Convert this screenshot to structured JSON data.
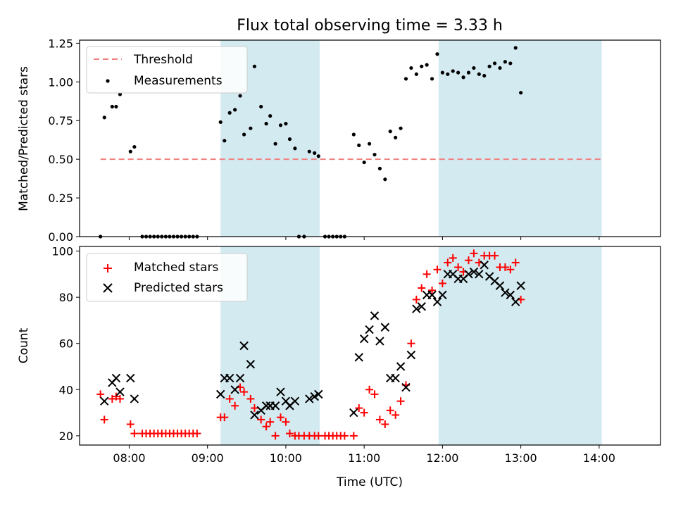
{
  "chart_data": [
    {
      "type": "scatter",
      "title": "Flux total observing time = 3.33 h",
      "ylabel": "Matched/Predicted stars",
      "xlabel": "",
      "xlim": [
        "07:22",
        "14:47"
      ],
      "ylim": [
        0,
        1.27
      ],
      "x_ticks": [
        "08:00",
        "09:00",
        "10:00",
        "11:00",
        "12:00",
        "13:00",
        "14:00"
      ],
      "y_ticks": [
        "0.00",
        "0.25",
        "0.50",
        "0.75",
        "1.00",
        "1.25"
      ],
      "legend_position": "top-left",
      "shaded_intervals": [
        [
          "09:10",
          "10:26"
        ],
        [
          "11:57",
          "14:02"
        ]
      ],
      "shade_color": "#d4eaf1",
      "threshold": {
        "name": "Threshold",
        "value": 0.5,
        "x_start": "07:38",
        "x_end": "14:02",
        "color": "#f08080"
      },
      "series": [
        {
          "name": "Measurements",
          "color": "#000000",
          "points": [
            [
              "07:38",
              0.0
            ],
            [
              "07:41",
              0.77
            ],
            [
              "07:47",
              0.84
            ],
            [
              "07:50",
              0.84
            ],
            [
              "07:53",
              0.92
            ],
            [
              "08:01",
              0.55
            ],
            [
              "08:04",
              0.58
            ],
            [
              "08:10",
              0.0
            ],
            [
              "08:13",
              0.0
            ],
            [
              "08:16",
              0.0
            ],
            [
              "08:19",
              0.0
            ],
            [
              "08:22",
              0.0
            ],
            [
              "08:25",
              0.0
            ],
            [
              "08:28",
              0.0
            ],
            [
              "08:31",
              0.0
            ],
            [
              "08:34",
              0.0
            ],
            [
              "08:37",
              0.0
            ],
            [
              "08:40",
              0.0
            ],
            [
              "08:43",
              0.0
            ],
            [
              "08:46",
              0.0
            ],
            [
              "08:49",
              0.0
            ],
            [
              "08:52",
              0.0
            ],
            [
              "09:10",
              0.74
            ],
            [
              "09:13",
              0.62
            ],
            [
              "09:17",
              0.8
            ],
            [
              "09:21",
              0.82
            ],
            [
              "09:25",
              0.91
            ],
            [
              "09:28",
              0.66
            ],
            [
              "09:33",
              0.7
            ],
            [
              "09:36",
              1.1
            ],
            [
              "09:41",
              0.84
            ],
            [
              "09:45",
              0.73
            ],
            [
              "09:48",
              0.78
            ],
            [
              "09:52",
              0.6
            ],
            [
              "09:56",
              0.72
            ],
            [
              "10:00",
              0.73
            ],
            [
              "10:03",
              0.63
            ],
            [
              "10:07",
              0.57
            ],
            [
              "10:10",
              0.0
            ],
            [
              "10:14",
              0.0
            ],
            [
              "10:18",
              0.55
            ],
            [
              "10:22",
              0.54
            ],
            [
              "10:25",
              0.52
            ],
            [
              "10:30",
              0.0
            ],
            [
              "10:33",
              0.0
            ],
            [
              "10:36",
              0.0
            ],
            [
              "10:39",
              0.0
            ],
            [
              "10:42",
              0.0
            ],
            [
              "10:45",
              0.0
            ],
            [
              "10:52",
              0.66
            ],
            [
              "10:56",
              0.59
            ],
            [
              "11:00",
              0.48
            ],
            [
              "11:04",
              0.6
            ],
            [
              "11:08",
              0.53
            ],
            [
              "11:12",
              0.44
            ],
            [
              "11:16",
              0.37
            ],
            [
              "11:20",
              0.68
            ],
            [
              "11:24",
              0.64
            ],
            [
              "11:28",
              0.7
            ],
            [
              "11:32",
              1.02
            ],
            [
              "11:36",
              1.09
            ],
            [
              "11:40",
              1.05
            ],
            [
              "11:44",
              1.1
            ],
            [
              "11:48",
              1.11
            ],
            [
              "11:52",
              1.02
            ],
            [
              "11:56",
              1.18
            ],
            [
              "12:00",
              1.06
            ],
            [
              "12:04",
              1.05
            ],
            [
              "12:08",
              1.07
            ],
            [
              "12:12",
              1.06
            ],
            [
              "12:16",
              1.03
            ],
            [
              "12:20",
              1.06
            ],
            [
              "12:24",
              1.09
            ],
            [
              "12:28",
              1.05
            ],
            [
              "12:32",
              1.04
            ],
            [
              "12:36",
              1.1
            ],
            [
              "12:40",
              1.12
            ],
            [
              "12:44",
              1.09
            ],
            [
              "12:48",
              1.13
            ],
            [
              "12:52",
              1.12
            ],
            [
              "12:56",
              1.22
            ],
            [
              "13:00",
              0.93
            ]
          ]
        }
      ]
    },
    {
      "type": "scatter",
      "title": "",
      "ylabel": "Count",
      "xlabel": "Time (UTC)",
      "xlim": [
        "07:22",
        "14:47"
      ],
      "ylim": [
        16,
        102
      ],
      "x_ticks": [
        "08:00",
        "09:00",
        "10:00",
        "11:00",
        "12:00",
        "13:00",
        "14:00"
      ],
      "y_ticks": [
        "20",
        "40",
        "60",
        "80",
        "100"
      ],
      "legend_position": "top-left",
      "shaded_intervals": [
        [
          "09:10",
          "10:26"
        ],
        [
          "11:57",
          "14:02"
        ]
      ],
      "shade_color": "#d4eaf1",
      "series": [
        {
          "name": "Matched stars",
          "marker": "plus",
          "color": "#ff0000",
          "points": [
            [
              "07:38",
              38
            ],
            [
              "07:41",
              27
            ],
            [
              "07:47",
              36
            ],
            [
              "07:50",
              37
            ],
            [
              "07:53",
              36
            ],
            [
              "08:01",
              25
            ],
            [
              "08:04",
              21
            ],
            [
              "08:10",
              21
            ],
            [
              "08:13",
              21
            ],
            [
              "08:16",
              21
            ],
            [
              "08:19",
              21
            ],
            [
              "08:22",
              21
            ],
            [
              "08:25",
              21
            ],
            [
              "08:28",
              21
            ],
            [
              "08:31",
              21
            ],
            [
              "08:34",
              21
            ],
            [
              "08:37",
              21
            ],
            [
              "08:40",
              21
            ],
            [
              "08:43",
              21
            ],
            [
              "08:46",
              21
            ],
            [
              "08:49",
              21
            ],
            [
              "08:52",
              21
            ],
            [
              "09:10",
              28
            ],
            [
              "09:13",
              28
            ],
            [
              "09:17",
              36
            ],
            [
              "09:21",
              33
            ],
            [
              "09:25",
              41
            ],
            [
              "09:28",
              39
            ],
            [
              "09:33",
              36
            ],
            [
              "09:36",
              32
            ],
            [
              "09:41",
              27
            ],
            [
              "09:45",
              24
            ],
            [
              "09:48",
              26
            ],
            [
              "09:52",
              20
            ],
            [
              "09:56",
              28
            ],
            [
              "10:00",
              26
            ],
            [
              "10:03",
              21
            ],
            [
              "10:07",
              20
            ],
            [
              "10:10",
              20
            ],
            [
              "10:14",
              20
            ],
            [
              "10:18",
              20
            ],
            [
              "10:22",
              20
            ],
            [
              "10:25",
              20
            ],
            [
              "10:30",
              20
            ],
            [
              "10:33",
              20
            ],
            [
              "10:36",
              20
            ],
            [
              "10:39",
              20
            ],
            [
              "10:42",
              20
            ],
            [
              "10:45",
              20
            ],
            [
              "10:52",
              20
            ],
            [
              "10:56",
              32
            ],
            [
              "11:00",
              30
            ],
            [
              "11:04",
              40
            ],
            [
              "11:08",
              38
            ],
            [
              "11:12",
              27
            ],
            [
              "11:16",
              25
            ],
            [
              "11:20",
              31
            ],
            [
              "11:24",
              29
            ],
            [
              "11:28",
              35
            ],
            [
              "11:32",
              42
            ],
            [
              "11:36",
              60
            ],
            [
              "11:40",
              79
            ],
            [
              "11:44",
              84
            ],
            [
              "11:48",
              90
            ],
            [
              "11:52",
              83
            ],
            [
              "11:56",
              92
            ],
            [
              "12:00",
              86
            ],
            [
              "12:04",
              95
            ],
            [
              "12:08",
              97
            ],
            [
              "12:12",
              93
            ],
            [
              "12:16",
              91
            ],
            [
              "12:20",
              96
            ],
            [
              "12:24",
              99
            ],
            [
              "12:28",
              95
            ],
            [
              "12:32",
              98
            ],
            [
              "12:36",
              98
            ],
            [
              "12:40",
              98
            ],
            [
              "12:44",
              93
            ],
            [
              "12:48",
              93
            ],
            [
              "12:52",
              92
            ],
            [
              "12:56",
              95
            ],
            [
              "13:00",
              79
            ]
          ]
        },
        {
          "name": "Predicted stars",
          "marker": "x",
          "color": "#000000",
          "points": [
            [
              "07:41",
              35
            ],
            [
              "07:47",
              43
            ],
            [
              "07:50",
              45
            ],
            [
              "07:53",
              39
            ],
            [
              "08:01",
              45
            ],
            [
              "08:04",
              36
            ],
            [
              "09:10",
              38
            ],
            [
              "09:13",
              45
            ],
            [
              "09:17",
              45
            ],
            [
              "09:21",
              40
            ],
            [
              "09:25",
              45
            ],
            [
              "09:28",
              59
            ],
            [
              "09:33",
              51
            ],
            [
              "09:36",
              29
            ],
            [
              "09:41",
              31
            ],
            [
              "09:45",
              33
            ],
            [
              "09:48",
              33
            ],
            [
              "09:52",
              33
            ],
            [
              "09:56",
              39
            ],
            [
              "10:00",
              35
            ],
            [
              "10:03",
              33
            ],
            [
              "10:07",
              35
            ],
            [
              "10:18",
              36
            ],
            [
              "10:22",
              37
            ],
            [
              "10:25",
              38
            ],
            [
              "10:52",
              30
            ],
            [
              "10:56",
              54
            ],
            [
              "11:00",
              62
            ],
            [
              "11:04",
              66
            ],
            [
              "11:08",
              72
            ],
            [
              "11:12",
              61
            ],
            [
              "11:16",
              67
            ],
            [
              "11:20",
              45
            ],
            [
              "11:24",
              45
            ],
            [
              "11:28",
              50
            ],
            [
              "11:32",
              41
            ],
            [
              "11:36",
              55
            ],
            [
              "11:40",
              75
            ],
            [
              "11:44",
              76
            ],
            [
              "11:48",
              81
            ],
            [
              "11:52",
              81
            ],
            [
              "11:56",
              78
            ],
            [
              "12:00",
              81
            ],
            [
              "12:04",
              90
            ],
            [
              "12:08",
              90
            ],
            [
              "12:12",
              88
            ],
            [
              "12:16",
              88
            ],
            [
              "12:20",
              90
            ],
            [
              "12:24",
              91
            ],
            [
              "12:28",
              90
            ],
            [
              "12:32",
              94
            ],
            [
              "12:36",
              89
            ],
            [
              "12:40",
              87
            ],
            [
              "12:44",
              85
            ],
            [
              "12:48",
              82
            ],
            [
              "12:52",
              81
            ],
            [
              "12:56",
              78
            ],
            [
              "13:00",
              85
            ]
          ]
        }
      ]
    }
  ]
}
